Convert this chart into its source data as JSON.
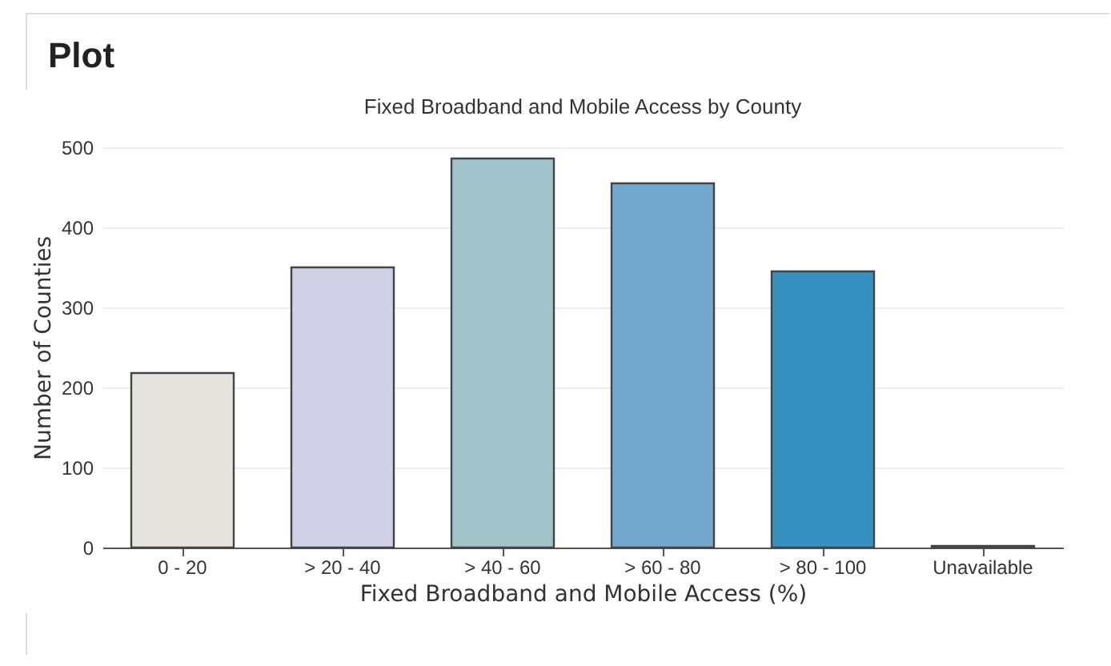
{
  "chart_data": {
    "type": "bar",
    "title": "Plot",
    "subtitle": "Fixed Broadband and Mobile Access by County",
    "xlabel": "Fixed Broadband and Mobile Access (%)",
    "ylabel": "Number of Counties",
    "categories": [
      "0 - 20",
      "> 20 - 40",
      "> 40 - 60",
      "> 60 - 80",
      "> 80 - 100",
      "Unavailable"
    ],
    "values": [
      218,
      350,
      486,
      455,
      345,
      2
    ],
    "colors": [
      "#e7e4df",
      "#d0d1e6",
      "#a0c4c9",
      "#74a9cf",
      "#3690c0",
      "#2b8cbe"
    ],
    "ylim": [
      0,
      500
    ],
    "yticks": [
      0,
      100,
      200,
      300,
      400,
      500
    ],
    "grid": "y",
    "legend": false
  }
}
